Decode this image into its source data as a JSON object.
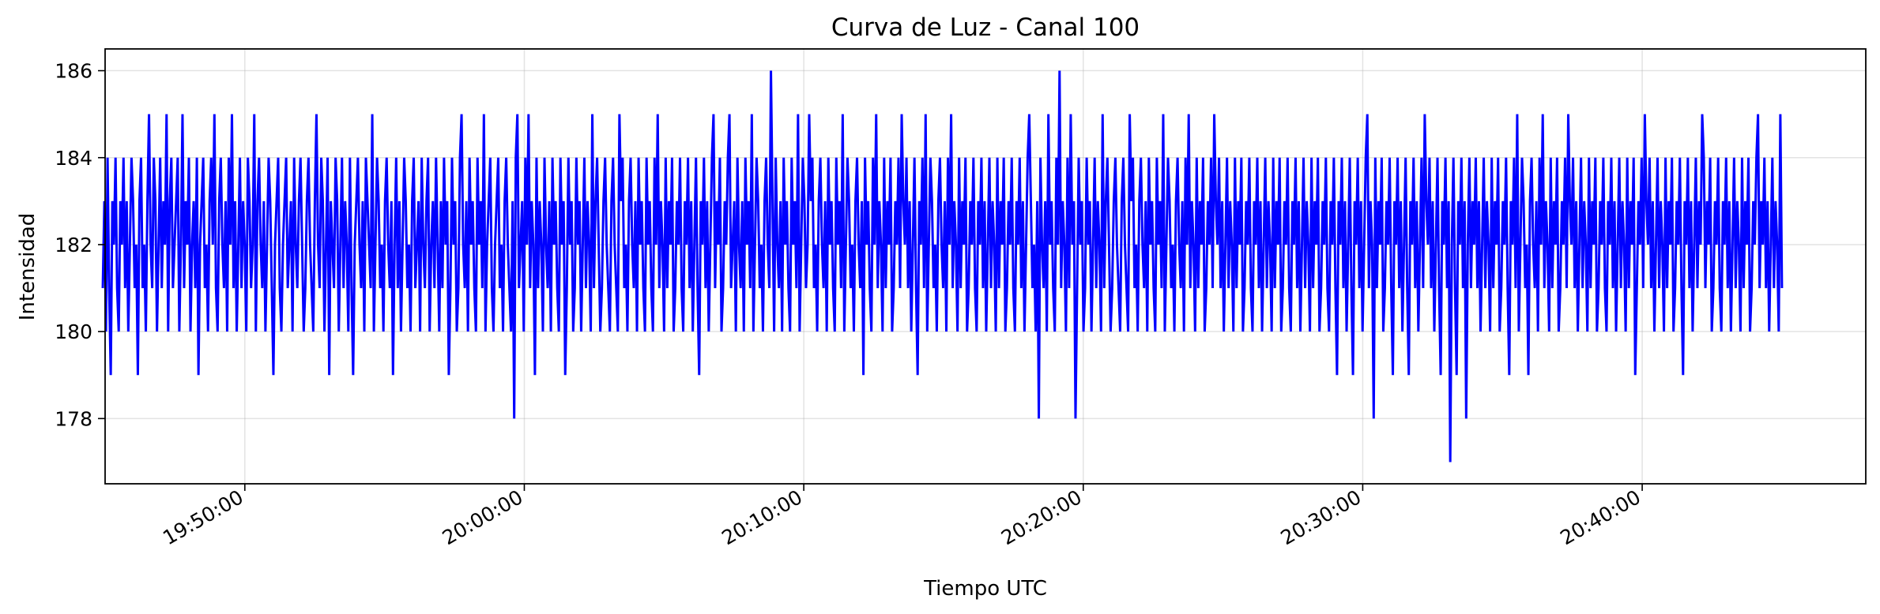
{
  "chart_data": {
    "type": "line",
    "title": "Curva de Luz - Canal 100",
    "xlabel": "Tiempo UTC",
    "ylabel": "Intensidad",
    "xlim": [
      "19:45:00",
      "20:48:00"
    ],
    "ylim": [
      176.5,
      186.5
    ],
    "x_ticks": [
      "19:50:00",
      "20:00:00",
      "20:10:00",
      "20:20:00",
      "20:30:00",
      "20:40:00"
    ],
    "y_ticks": [
      178,
      180,
      182,
      184,
      186
    ],
    "grid": true,
    "legend": "none",
    "series": [
      {
        "color": "#0000ff",
        "x_start": "19:44:55",
        "x_end": "20:45:00",
        "values": [
          181,
          183,
          180,
          184,
          181,
          179,
          183,
          182,
          184,
          181,
          180,
          183,
          182,
          184,
          181,
          183,
          180,
          182,
          184,
          183,
          181,
          182,
          179,
          183,
          184,
          181,
          182,
          180,
          183,
          185,
          182,
          181,
          184,
          183,
          180,
          182,
          184,
          181,
          183,
          182,
          185,
          180,
          183,
          184,
          181,
          182,
          183,
          184,
          180,
          182,
          185,
          181,
          183,
          182,
          184,
          180,
          182,
          183,
          181,
          184,
          179,
          182,
          183,
          184,
          181,
          182,
          180,
          183,
          184,
          182,
          185,
          181,
          180,
          183,
          184,
          182,
          181,
          183,
          180,
          184,
          182,
          185,
          181,
          183,
          180,
          182,
          184,
          181,
          183,
          182,
          180,
          184,
          183,
          181,
          182,
          185,
          180,
          183,
          184,
          182,
          181,
          183,
          180,
          182,
          184,
          183,
          181,
          179,
          182,
          183,
          184,
          181,
          180,
          182,
          183,
          184,
          181,
          182,
          183,
          180,
          184,
          182,
          181,
          183,
          184,
          182,
          180,
          181,
          183,
          184,
          182,
          181,
          180,
          183,
          185,
          182,
          181,
          184,
          183,
          180,
          182,
          184,
          179,
          183,
          182,
          181,
          184,
          183,
          180,
          182,
          184,
          181,
          183,
          182,
          180,
          184,
          181,
          179,
          182,
          183,
          184,
          182,
          181,
          183,
          180,
          184,
          183,
          182,
          181,
          185,
          180,
          182,
          184,
          183,
          181,
          182,
          180,
          183,
          184,
          182,
          181,
          183,
          179,
          182,
          184,
          181,
          183,
          180,
          182,
          184,
          183,
          181,
          182,
          180,
          183,
          184,
          181,
          182,
          183,
          180,
          184,
          182,
          181,
          183,
          184,
          180,
          182,
          183,
          181,
          184,
          182,
          180,
          183,
          181,
          184,
          182,
          183,
          179,
          181,
          184,
          182,
          183,
          180,
          181,
          184,
          185,
          182,
          181,
          183,
          180,
          184,
          182,
          183,
          181,
          180,
          184,
          182,
          183,
          181,
          185,
          180,
          182,
          183,
          184,
          181,
          180,
          182,
          183,
          184,
          181,
          182,
          180,
          183,
          184,
          182,
          181,
          180,
          183,
          178,
          184,
          185,
          181,
          182,
          183,
          180,
          184,
          182,
          185,
          181,
          183,
          182,
          179,
          184,
          181,
          183,
          182,
          180,
          184,
          182,
          181,
          183,
          180,
          184,
          182,
          183,
          181,
          180,
          184,
          182,
          183,
          179,
          181,
          184,
          182,
          183,
          180,
          181,
          184,
          182,
          183,
          180,
          182,
          184,
          181,
          183,
          182,
          180,
          185,
          181,
          183,
          184,
          182,
          180,
          181,
          183,
          184,
          182,
          181,
          180,
          183,
          184,
          182,
          181,
          180,
          185,
          183,
          184,
          181,
          182,
          180,
          183,
          184,
          182,
          181,
          183,
          180,
          184,
          182,
          183,
          181,
          180,
          184,
          182,
          183,
          181,
          180,
          184,
          182,
          185,
          181,
          183,
          182,
          180,
          184,
          181,
          183,
          182,
          184,
          180,
          181,
          183,
          182,
          184,
          181,
          180,
          183,
          182,
          184,
          181,
          183,
          180,
          182,
          184,
          181,
          179,
          183,
          182,
          184,
          181,
          183,
          180,
          182,
          184,
          185,
          181,
          183,
          182,
          184,
          180,
          181,
          183,
          182,
          184,
          185,
          181,
          182,
          183,
          180,
          184,
          182,
          181,
          183,
          180,
          184,
          182,
          183,
          181,
          185,
          180,
          182,
          184,
          183,
          181,
          182,
          180,
          183,
          184,
          182,
          181,
          186,
          183,
          180,
          184,
          182,
          181,
          183,
          180,
          184,
          182,
          183,
          181,
          180,
          184,
          182,
          183,
          181,
          185,
          180,
          182,
          184,
          183,
          181,
          182,
          185,
          183,
          184,
          181,
          182,
          180,
          183,
          184,
          182,
          181,
          183,
          180,
          184,
          182,
          183,
          181,
          180,
          184,
          182,
          183,
          181,
          185,
          180,
          182,
          184,
          183,
          181,
          182,
          180,
          183,
          184,
          182,
          181,
          183,
          179,
          184,
          182,
          183,
          181,
          180,
          184,
          182,
          185,
          181,
          183,
          182,
          180,
          184,
          181,
          183,
          182,
          184,
          180,
          181,
          183,
          182,
          184,
          181,
          185,
          183,
          182,
          184,
          181,
          183,
          180,
          182,
          184,
          181,
          179,
          183,
          182,
          184,
          181,
          185,
          180,
          182,
          184,
          183,
          181,
          182,
          180,
          183,
          184,
          182,
          181,
          183,
          180,
          184,
          182,
          185,
          181,
          183,
          182,
          180,
          184,
          181,
          183,
          182,
          184,
          180,
          181,
          183,
          182,
          184,
          181,
          180,
          183,
          182,
          184,
          181,
          183,
          180,
          182,
          184,
          181,
          183,
          182,
          180,
          184,
          181,
          183,
          182,
          184,
          180,
          181,
          183,
          182,
          184,
          181,
          180,
          183,
          182,
          184,
          181,
          183,
          180,
          182,
          184,
          185,
          183,
          181,
          182,
          180,
          183,
          178,
          184,
          182,
          181,
          183,
          180,
          185,
          182,
          183,
          181,
          180,
          184,
          182,
          186,
          181,
          183,
          182,
          180,
          184,
          181,
          185,
          182,
          183,
          178,
          181,
          184,
          182,
          183,
          180,
          181,
          184,
          182,
          183,
          180,
          182,
          184,
          181,
          183,
          182,
          180,
          185,
          181,
          183,
          184,
          182,
          180,
          181,
          183,
          184,
          182,
          181,
          180,
          183,
          184,
          182,
          181,
          180,
          185,
          183,
          184,
          181,
          182,
          180,
          183,
          184,
          182,
          181,
          183,
          180,
          184,
          182,
          183,
          181,
          180,
          184,
          182,
          183,
          181,
          185,
          180,
          182,
          184,
          183,
          181,
          182,
          180,
          183,
          184,
          182,
          181,
          183,
          180,
          184,
          182,
          185,
          181,
          183,
          182,
          180,
          184,
          181,
          183,
          182,
          184,
          180,
          181,
          183,
          182,
          184,
          181,
          185,
          183,
          182,
          184,
          181,
          183,
          180,
          182,
          184,
          181,
          183,
          182,
          180,
          184,
          181,
          183,
          182,
          184,
          180,
          181,
          183,
          182,
          184,
          181,
          180,
          183,
          182,
          184,
          181,
          183,
          180,
          182,
          184,
          181,
          183,
          182,
          180,
          184,
          181,
          183,
          182,
          184,
          180,
          181,
          183,
          182,
          184,
          181,
          180,
          183,
          182,
          184,
          181,
          183,
          180,
          182,
          184,
          181,
          183,
          182,
          180,
          184,
          181,
          183,
          182,
          184,
          180,
          181,
          183,
          182,
          184,
          181,
          180,
          183,
          182,
          184,
          181,
          179,
          183,
          182,
          184,
          181,
          183,
          180,
          182,
          184,
          181,
          179,
          183,
          182,
          184,
          181,
          183,
          180,
          182,
          184,
          185,
          181,
          183,
          182,
          178,
          184,
          181,
          183,
          182,
          184,
          180,
          181,
          183,
          182,
          184,
          181,
          179,
          183,
          182,
          184,
          181,
          183,
          180,
          182,
          184,
          181,
          179,
          183,
          182,
          184,
          181,
          183,
          180,
          182,
          184,
          181,
          185,
          183,
          182,
          184,
          181,
          183,
          180,
          182,
          184,
          181,
          179,
          183,
          182,
          184,
          181,
          183,
          177,
          182,
          184,
          181,
          179,
          183,
          182,
          184,
          181,
          183,
          178,
          182,
          184,
          181,
          183,
          182,
          184,
          181,
          183,
          180,
          182,
          184,
          181,
          183,
          182,
          180,
          184,
          181,
          183,
          182,
          184,
          180,
          181,
          183,
          182,
          184,
          181,
          179,
          183,
          182,
          184,
          181,
          185,
          180,
          182,
          184,
          183,
          181,
          182,
          179,
          183,
          184,
          182,
          181,
          183,
          180,
          184,
          182,
          185,
          181,
          183,
          182,
          180,
          184,
          181,
          183,
          182,
          184,
          180,
          181,
          183,
          182,
          184,
          181,
          185,
          183,
          182,
          184,
          181,
          183,
          180,
          182,
          184,
          181,
          183,
          182,
          180,
          184,
          181,
          183,
          182,
          184,
          180,
          181,
          183,
          182,
          184,
          181,
          180,
          183,
          182,
          184,
          181,
          183,
          180,
          182,
          184,
          181,
          183,
          182,
          180,
          184,
          181,
          183,
          182,
          184,
          179,
          181,
          183,
          182,
          184,
          181,
          185,
          183,
          182,
          184,
          181,
          183,
          180,
          182,
          184,
          181,
          183,
          182,
          180,
          184,
          181,
          183,
          182,
          184,
          180,
          181,
          183,
          182,
          184,
          181,
          179,
          183,
          182,
          184,
          181,
          183,
          180,
          182,
          184,
          181,
          183,
          182,
          185,
          184,
          181,
          183,
          182,
          184,
          180,
          181,
          183,
          182,
          184,
          181,
          180,
          183,
          182,
          184,
          181,
          183,
          180,
          182,
          184,
          181,
          183,
          182,
          180,
          184,
          181,
          183,
          182,
          184,
          180,
          181,
          183,
          182,
          184,
          185,
          181,
          183,
          182,
          184,
          181,
          183,
          180,
          182,
          184,
          181,
          183,
          182,
          180,
          185,
          181
        ]
      }
    ]
  }
}
